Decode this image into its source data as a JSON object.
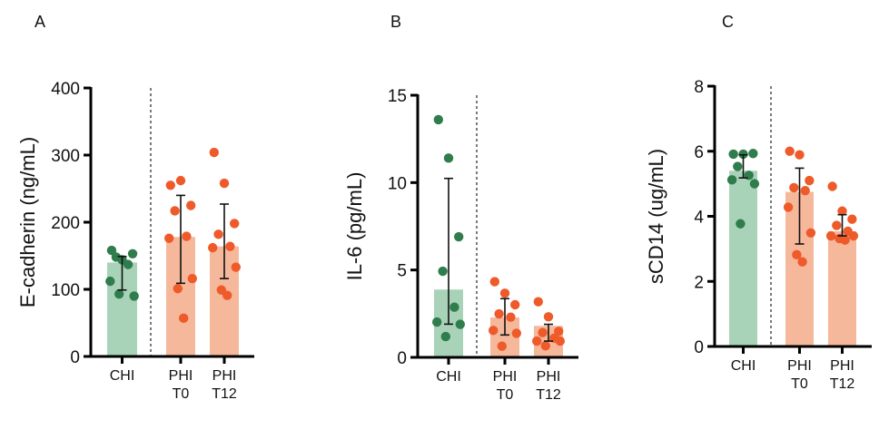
{
  "colors": {
    "control_bar": "#a9d3b8",
    "control_point": "#2f7d4c",
    "case_bar": "#f5b89b",
    "case_point": "#ef5a2a",
    "axis": "#000000"
  },
  "chart_data": [
    {
      "type": "bar",
      "panel_label": "A",
      "ylabel": "E-cadherin (ng/mL)",
      "ylim": [
        0,
        400
      ],
      "yticks": [
        0,
        100,
        200,
        300,
        400
      ],
      "categories": [
        [
          "CHI"
        ],
        [
          "PHI",
          "T0"
        ],
        [
          "PHI",
          "T12"
        ]
      ],
      "bars": [
        140,
        178,
        164
      ],
      "error": [
        [
          99,
          149
        ],
        [
          109,
          240
        ],
        [
          116,
          227
        ]
      ],
      "points": [
        [
          158,
          144,
          153,
          148,
          137,
          112,
          90,
          93
        ],
        [
          255,
          262,
          225,
          217,
          179,
          176,
          116,
          101,
          57
        ],
        [
          304,
          258,
          198,
          182,
          164,
          162,
          133,
          99,
          91
        ]
      ],
      "separator_after": 0
    },
    {
      "type": "bar",
      "panel_label": "B",
      "ylabel": "IL-6 (pg/mL)",
      "ylim": [
        0,
        15
      ],
      "yticks": [
        0,
        5,
        10,
        15
      ],
      "categories": [
        [
          "CHI"
        ],
        [
          "PHI",
          "T0"
        ],
        [
          "PHI",
          "T12"
        ]
      ],
      "bars": [
        3.88,
        2.28,
        1.8
      ],
      "error": [
        [
          1.9,
          10.24
        ],
        [
          1.28,
          3.36
        ],
        [
          0.93,
          1.89
        ]
      ],
      "points": [
        [
          13.6,
          11.4,
          6.9,
          4.93,
          2.87,
          2.02,
          1.89,
          1.19
        ],
        [
          4.33,
          3.67,
          3.01,
          2.49,
          2.3,
          1.54,
          1.38,
          0.64
        ],
        [
          3.18,
          2.32,
          1.49,
          1.42,
          1.1,
          0.93,
          0.93,
          0.66
        ]
      ],
      "separator_after": 0
    },
    {
      "type": "bar",
      "panel_label": "C",
      "ylabel": "sCD14 (ug/mL)",
      "ylim": [
        0,
        8
      ],
      "yticks": [
        0,
        2,
        4,
        6,
        8
      ],
      "categories": [
        [
          "CHI"
        ],
        [
          "PHI",
          "T0"
        ],
        [
          "PHI",
          "T12"
        ]
      ],
      "bars": [
        5.4,
        4.75,
        3.54
      ],
      "error": [
        [
          5.18,
          5.89
        ],
        [
          3.15,
          5.48
        ],
        [
          3.4,
          4.05
        ]
      ],
      "points": [
        [
          5.91,
          5.91,
          5.93,
          5.53,
          5.26,
          5.12,
          5.0,
          3.77
        ],
        [
          6.0,
          5.89,
          5.1,
          4.88,
          4.79,
          4.28,
          3.49,
          2.82,
          2.6
        ],
        [
          4.92,
          4.16,
          3.91,
          3.72,
          3.54,
          3.4,
          3.4,
          3.32,
          3.27
        ]
      ],
      "separator_after": 0
    }
  ]
}
